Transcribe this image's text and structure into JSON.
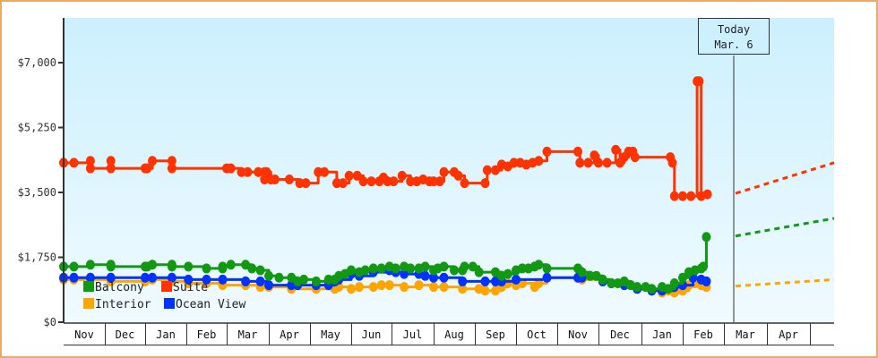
{
  "chart_data": {
    "type": "line",
    "title": "",
    "xlabel": "",
    "ylabel": "",
    "ylim": [
      0,
      8200
    ],
    "y_ticks": [
      {
        "label": "$0",
        "value": 0
      },
      {
        "label": "$1,750",
        "value": 1750
      },
      {
        "label": "$3,500",
        "value": 3500
      },
      {
        "label": "$5,250",
        "value": 5250
      },
      {
        "label": "$7,000",
        "value": 7000
      }
    ],
    "x_months": [
      "Nov",
      "Dec",
      "Jan",
      "Feb",
      "Mar",
      "Apr",
      "May",
      "Jun",
      "Jul",
      "Aug",
      "Sep",
      "Oct",
      "Nov",
      "Dec",
      "Jan",
      "Feb",
      "Mar",
      "Apr"
    ],
    "today": {
      "line1": "Today",
      "line2": "Mar. 6"
    },
    "legend": [
      {
        "name": "Balcony",
        "color": "#119911"
      },
      {
        "name": "Suite",
        "color": "#FF3300"
      },
      {
        "name": "Interior",
        "color": "#FFA500"
      },
      {
        "name": "Ocean View",
        "color": "#0033FF"
      }
    ],
    "grid": false,
    "series": [
      {
        "name": "Suite",
        "color": "#FF3300",
        "points": [
          [
            0.0,
            4300
          ],
          [
            0.5,
            4300
          ],
          [
            1.3,
            4350
          ],
          [
            1.3,
            4150
          ],
          [
            2.3,
            4350
          ],
          [
            2.3,
            4150
          ],
          [
            4.0,
            4150
          ],
          [
            4.1,
            4150
          ],
          [
            4.35,
            4350
          ],
          [
            5.3,
            4350
          ],
          [
            5.3,
            4150
          ],
          [
            8.0,
            4150
          ],
          [
            8.2,
            4150
          ],
          [
            8.7,
            4050
          ],
          [
            9.0,
            4050
          ],
          [
            9.5,
            4050
          ],
          [
            9.8,
            4050
          ],
          [
            9.8,
            3850
          ],
          [
            9.9,
            4050
          ],
          [
            10.1,
            3850
          ],
          [
            10.3,
            3850
          ],
          [
            11.0,
            3850
          ],
          [
            11.5,
            3750
          ],
          [
            11.8,
            3750
          ],
          [
            12.4,
            4050
          ],
          [
            12.7,
            4050
          ],
          [
            13.3,
            3750
          ],
          [
            13.6,
            3750
          ],
          [
            13.9,
            3950
          ],
          [
            14.3,
            3950
          ],
          [
            14.6,
            3800
          ],
          [
            15.0,
            3800
          ],
          [
            15.4,
            3800
          ],
          [
            15.6,
            3900
          ],
          [
            15.8,
            3800
          ],
          [
            16.1,
            3800
          ],
          [
            16.5,
            3950
          ],
          [
            16.9,
            3800
          ],
          [
            17.2,
            3800
          ],
          [
            17.5,
            3850
          ],
          [
            17.8,
            3800
          ],
          [
            18.0,
            3800
          ],
          [
            18.3,
            3800
          ],
          [
            18.5,
            4050
          ],
          [
            19.0,
            4050
          ],
          [
            19.2,
            3950
          ],
          [
            19.5,
            3750
          ],
          [
            20.5,
            3750
          ],
          [
            20.6,
            4100
          ],
          [
            21.0,
            4100
          ],
          [
            21.3,
            4250
          ],
          [
            21.6,
            4200
          ],
          [
            21.9,
            4300
          ],
          [
            22.2,
            4300
          ],
          [
            22.5,
            4250
          ],
          [
            22.8,
            4300
          ],
          [
            23.1,
            4350
          ],
          [
            23.5,
            4600
          ],
          [
            25.0,
            4600
          ],
          [
            25.1,
            4300
          ],
          [
            25.5,
            4300
          ],
          [
            25.8,
            4500
          ],
          [
            26.0,
            4300
          ],
          [
            26.4,
            4300
          ],
          [
            26.8,
            4650
          ],
          [
            27.0,
            4300
          ],
          [
            27.2,
            4450
          ],
          [
            27.4,
            4600
          ],
          [
            27.6,
            4600
          ],
          [
            27.7,
            4450
          ],
          [
            29.4,
            4450
          ],
          [
            29.5,
            4300
          ],
          [
            29.6,
            3400
          ],
          [
            30.0,
            3400
          ],
          [
            30.4,
            3400
          ],
          [
            30.7,
            6500
          ],
          [
            30.8,
            6500
          ],
          [
            30.9,
            3400
          ],
          [
            31.2,
            3450
          ]
        ]
      },
      {
        "name": "Balcony",
        "color": "#119911",
        "points": [
          [
            0.0,
            1500
          ],
          [
            0.5,
            1500
          ],
          [
            1.3,
            1550
          ],
          [
            2.3,
            1550
          ],
          [
            2.3,
            1500
          ],
          [
            4.0,
            1500
          ],
          [
            4.1,
            1500
          ],
          [
            4.35,
            1550
          ],
          [
            5.3,
            1550
          ],
          [
            5.3,
            1500
          ],
          [
            6.1,
            1500
          ],
          [
            7.0,
            1450
          ],
          [
            7.8,
            1450
          ],
          [
            7.8,
            1500
          ],
          [
            8.2,
            1550
          ],
          [
            8.9,
            1550
          ],
          [
            9.2,
            1450
          ],
          [
            9.6,
            1400
          ],
          [
            10.0,
            1250
          ],
          [
            10.5,
            1200
          ],
          [
            11.1,
            1200
          ],
          [
            11.4,
            1100
          ],
          [
            11.7,
            1150
          ],
          [
            12.3,
            1100
          ],
          [
            12.9,
            1150
          ],
          [
            13.2,
            1150
          ],
          [
            13.4,
            1250
          ],
          [
            13.7,
            1300
          ],
          [
            14.0,
            1400
          ],
          [
            14.4,
            1350
          ],
          [
            14.7,
            1400
          ],
          [
            15.1,
            1450
          ],
          [
            15.5,
            1450
          ],
          [
            15.9,
            1500
          ],
          [
            16.2,
            1450
          ],
          [
            16.6,
            1500
          ],
          [
            16.9,
            1450
          ],
          [
            17.3,
            1450
          ],
          [
            17.6,
            1500
          ],
          [
            18.0,
            1400
          ],
          [
            18.2,
            1450
          ],
          [
            18.5,
            1500
          ],
          [
            19.0,
            1400
          ],
          [
            19.4,
            1400
          ],
          [
            19.5,
            1500
          ],
          [
            19.9,
            1500
          ],
          [
            20.2,
            1350
          ],
          [
            21.0,
            1350
          ],
          [
            21.3,
            1250
          ],
          [
            21.6,
            1300
          ],
          [
            22.0,
            1400
          ],
          [
            22.3,
            1450
          ],
          [
            22.6,
            1450
          ],
          [
            22.9,
            1500
          ],
          [
            23.1,
            1550
          ],
          [
            23.5,
            1450
          ],
          [
            25.0,
            1450
          ],
          [
            25.2,
            1350
          ],
          [
            25.6,
            1250
          ],
          [
            25.9,
            1250
          ],
          [
            26.2,
            1150
          ],
          [
            26.6,
            1050
          ],
          [
            26.9,
            1050
          ],
          [
            27.2,
            1100
          ],
          [
            27.5,
            1000
          ],
          [
            27.8,
            950
          ],
          [
            28.2,
            950
          ],
          [
            28.5,
            900
          ],
          [
            29.0,
            950
          ],
          [
            29.3,
            900
          ],
          [
            29.6,
            1050
          ],
          [
            30.0,
            1200
          ],
          [
            30.3,
            1350
          ],
          [
            30.6,
            1400
          ],
          [
            30.9,
            1450
          ],
          [
            31.0,
            1500
          ],
          [
            31.15,
            2300
          ]
        ]
      },
      {
        "name": "Ocean View",
        "color": "#0033FF",
        "points": [
          [
            0.0,
            1200
          ],
          [
            0.5,
            1200
          ],
          [
            1.3,
            1200
          ],
          [
            2.3,
            1200
          ],
          [
            4.0,
            1200
          ],
          [
            4.35,
            1200
          ],
          [
            5.3,
            1200
          ],
          [
            6.1,
            1150
          ],
          [
            7.0,
            1150
          ],
          [
            7.8,
            1150
          ],
          [
            8.9,
            1100
          ],
          [
            9.6,
            1100
          ],
          [
            10.0,
            1000
          ],
          [
            11.1,
            1000
          ],
          [
            11.4,
            1000
          ],
          [
            12.3,
            1000
          ],
          [
            12.9,
            1000
          ],
          [
            13.2,
            1100
          ],
          [
            13.4,
            1150
          ],
          [
            14.0,
            1300
          ],
          [
            14.4,
            1250
          ],
          [
            15.1,
            1350
          ],
          [
            15.9,
            1400
          ],
          [
            16.2,
            1350
          ],
          [
            16.6,
            1300
          ],
          [
            17.3,
            1300
          ],
          [
            17.6,
            1250
          ],
          [
            18.0,
            1200
          ],
          [
            18.5,
            1200
          ],
          [
            19.4,
            1100
          ],
          [
            20.5,
            1100
          ],
          [
            21.0,
            1100
          ],
          [
            21.3,
            1100
          ],
          [
            22.0,
            1150
          ],
          [
            23.5,
            1200
          ],
          [
            25.0,
            1200
          ],
          [
            25.2,
            1200
          ],
          [
            26.2,
            1100
          ],
          [
            26.6,
            1050
          ],
          [
            27.2,
            1000
          ],
          [
            27.8,
            900
          ],
          [
            28.5,
            850
          ],
          [
            29.0,
            850
          ],
          [
            29.6,
            950
          ],
          [
            30.0,
            1000
          ],
          [
            30.5,
            1200
          ],
          [
            30.9,
            1150
          ],
          [
            31.15,
            1100
          ]
        ]
      },
      {
        "name": "Interior",
        "color": "#FFA500",
        "points": [
          [
            0.0,
            1150
          ],
          [
            0.5,
            1150
          ],
          [
            1.3,
            1150
          ],
          [
            2.3,
            1100
          ],
          [
            4.0,
            1100
          ],
          [
            4.35,
            1150
          ],
          [
            5.3,
            1100
          ],
          [
            6.1,
            1050
          ],
          [
            7.0,
            1050
          ],
          [
            7.8,
            1000
          ],
          [
            8.9,
            1000
          ],
          [
            9.6,
            950
          ],
          [
            10.0,
            950
          ],
          [
            11.1,
            900
          ],
          [
            12.3,
            900
          ],
          [
            13.2,
            900
          ],
          [
            13.4,
            950
          ],
          [
            14.0,
            900
          ],
          [
            14.4,
            950
          ],
          [
            15.1,
            950
          ],
          [
            15.5,
            1000
          ],
          [
            15.9,
            1000
          ],
          [
            16.6,
            950
          ],
          [
            17.3,
            1000
          ],
          [
            18.0,
            950
          ],
          [
            18.5,
            950
          ],
          [
            19.4,
            900
          ],
          [
            20.2,
            900
          ],
          [
            20.5,
            850
          ],
          [
            21.0,
            850
          ],
          [
            21.3,
            950
          ],
          [
            21.6,
            1050
          ],
          [
            22.0,
            1000
          ],
          [
            22.3,
            1050
          ],
          [
            22.9,
            950
          ],
          [
            23.1,
            1050
          ],
          [
            23.5,
            1200
          ],
          [
            25.0,
            1200
          ],
          [
            25.2,
            1150
          ],
          [
            26.2,
            1100
          ],
          [
            26.6,
            1050
          ],
          [
            27.2,
            1000
          ],
          [
            27.8,
            900
          ],
          [
            28.5,
            850
          ],
          [
            29.0,
            800
          ],
          [
            29.3,
            850
          ],
          [
            29.6,
            800
          ],
          [
            30.0,
            850
          ],
          [
            30.3,
            1000
          ],
          [
            30.6,
            1050
          ],
          [
            30.9,
            1000
          ],
          [
            31.15,
            950
          ]
        ]
      }
    ],
    "forecast": [
      {
        "name": "Suite",
        "color": "#FF3300",
        "from": 3450,
        "to": 4300
      },
      {
        "name": "Balcony",
        "color": "#119911",
        "from": 2300,
        "to": 2800
      },
      {
        "name": "Interior",
        "color": "#FFA500",
        "from": 950,
        "to": 1150
      }
    ]
  }
}
